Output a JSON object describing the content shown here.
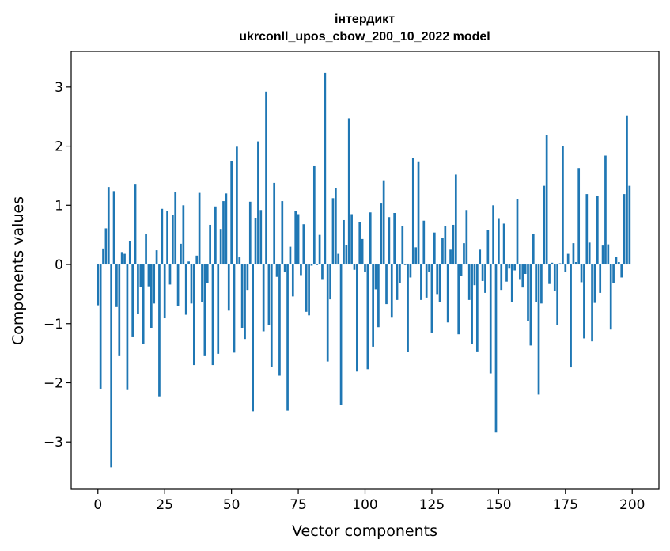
{
  "chart_data": {
    "type": "bar",
    "title_line1": "інтердикт",
    "title_line2": "ukrconll_upos_cbow_200_10_2022 model",
    "xlabel": "Vector components",
    "ylabel": "Components values",
    "xlim": [
      -10,
      210
    ],
    "ylim": [
      -3.8,
      3.6
    ],
    "xticks": [
      0,
      25,
      50,
      75,
      100,
      125,
      150,
      175,
      200
    ],
    "yticks": [
      -3,
      -2,
      -1,
      0,
      1,
      2,
      3
    ],
    "xtick_labels": [
      "0",
      "25",
      "50",
      "75",
      "100",
      "125",
      "150",
      "175",
      "200"
    ],
    "ytick_labels": [
      "−3",
      "−2",
      "−1",
      "0",
      "1",
      "2",
      "3"
    ],
    "bar_color": "#1f77b4",
    "grid": false,
    "values": [
      -0.69,
      -2.1,
      0.27,
      0.61,
      1.31,
      -3.43,
      1.24,
      -0.72,
      -1.55,
      0.21,
      0.18,
      -2.11,
      0.4,
      -1.23,
      1.35,
      -0.84,
      -0.38,
      -1.34,
      0.51,
      -0.37,
      -1.07,
      -0.66,
      0.24,
      -2.23,
      0.94,
      -0.91,
      0.91,
      -0.34,
      0.84,
      1.22,
      -0.7,
      0.35,
      1.0,
      -0.85,
      0.05,
      -0.66,
      -1.7,
      0.15,
      1.21,
      -0.64,
      -1.55,
      -0.32,
      0.67,
      -1.7,
      0.98,
      -1.51,
      0.6,
      1.07,
      1.2,
      -0.78,
      1.75,
      -1.49,
      1.99,
      0.12,
      -1.07,
      -1.26,
      -0.43,
      1.06,
      -2.48,
      0.78,
      2.08,
      0.92,
      -1.13,
      2.92,
      -1.03,
      -1.73,
      1.38,
      -0.21,
      -1.88,
      1.07,
      -0.13,
      -2.47,
      0.3,
      -0.54,
      0.91,
      0.85,
      -0.18,
      0.68,
      -0.8,
      -0.86,
      -0.02,
      1.66,
      -0.01,
      0.5,
      -0.26,
      3.24,
      -1.64,
      -0.59,
      1.12,
      1.29,
      0.18,
      -2.37,
      0.75,
      0.33,
      2.47,
      0.85,
      -0.09,
      -1.81,
      0.71,
      0.43,
      -0.13,
      -1.77,
      0.88,
      -1.39,
      -0.42,
      -1.06,
      1.03,
      1.41,
      -0.67,
      0.8,
      -0.9,
      0.87,
      -0.6,
      -0.31,
      0.65,
      -0.01,
      -1.48,
      -0.22,
      1.8,
      0.29,
      1.73,
      -0.6,
      0.74,
      -0.56,
      -0.12,
      -1.15,
      0.54,
      -0.5,
      -0.63,
      0.45,
      0.65,
      -0.98,
      0.25,
      0.67,
      1.52,
      -1.18,
      -0.19,
      0.36,
      0.92,
      -0.6,
      -1.35,
      -0.35,
      -1.47,
      0.25,
      -0.28,
      -0.48,
      0.58,
      -1.84,
      1.0,
      -2.84,
      0.77,
      -0.43,
      0.69,
      -0.29,
      -0.07,
      -0.64,
      -0.1,
      1.1,
      -0.26,
      -0.39,
      -0.16,
      -0.95,
      -1.37,
      0.51,
      -0.63,
      -2.2,
      -0.66,
      1.33,
      2.19,
      -0.33,
      0.03,
      -0.45,
      -1.03,
      0.02,
      2.0,
      -0.13,
      0.18,
      -1.74,
      0.36,
      0.04,
      1.63,
      -0.3,
      -1.25,
      1.19,
      0.37,
      -1.3,
      -0.65,
      1.16,
      -0.48,
      0.32,
      1.84,
      0.34,
      -1.1,
      -0.32,
      0.13,
      0.04,
      -0.22,
      1.19,
      2.52,
      1.33
    ]
  }
}
